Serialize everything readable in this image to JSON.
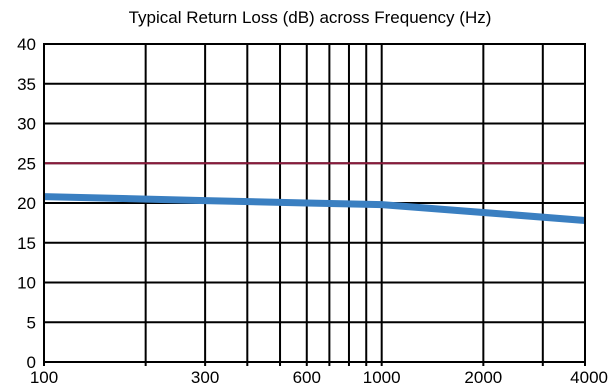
{
  "chart_data": {
    "type": "line",
    "title": "Typical Return Loss (dB) across Frequency (Hz)",
    "xlabel": "",
    "ylabel": "",
    "x_scale": "log",
    "xlim": [
      100,
      4000
    ],
    "ylim": [
      0,
      40
    ],
    "x_ticks": [
      100,
      300,
      600,
      1000,
      2000,
      4000
    ],
    "y_ticks": [
      0,
      5,
      10,
      15,
      20,
      25,
      30,
      35,
      40
    ],
    "x_gridlines": [
      100,
      200,
      300,
      400,
      500,
      600,
      700,
      800,
      900,
      1000,
      2000,
      3000,
      4000
    ],
    "y_gridlines": [
      5,
      10,
      15,
      20,
      25,
      30,
      35,
      40
    ],
    "grid": true,
    "legend": "none",
    "series": [
      {
        "type": "line",
        "x": [
          100,
          300,
          600,
          1000,
          2000,
          4000
        ],
        "y": [
          20.8,
          20.3,
          20.0,
          19.8,
          18.8,
          17.8
        ],
        "color": "#3a7fc1"
      },
      {
        "type": "reference-line",
        "x": [
          100,
          4000
        ],
        "y": [
          25,
          25
        ],
        "color": "#8b1a3c"
      }
    ]
  },
  "colors": {
    "grid": "#000000",
    "background": "#ffffff",
    "line": "#3a7fc1",
    "reference": "#8b1a3c"
  }
}
